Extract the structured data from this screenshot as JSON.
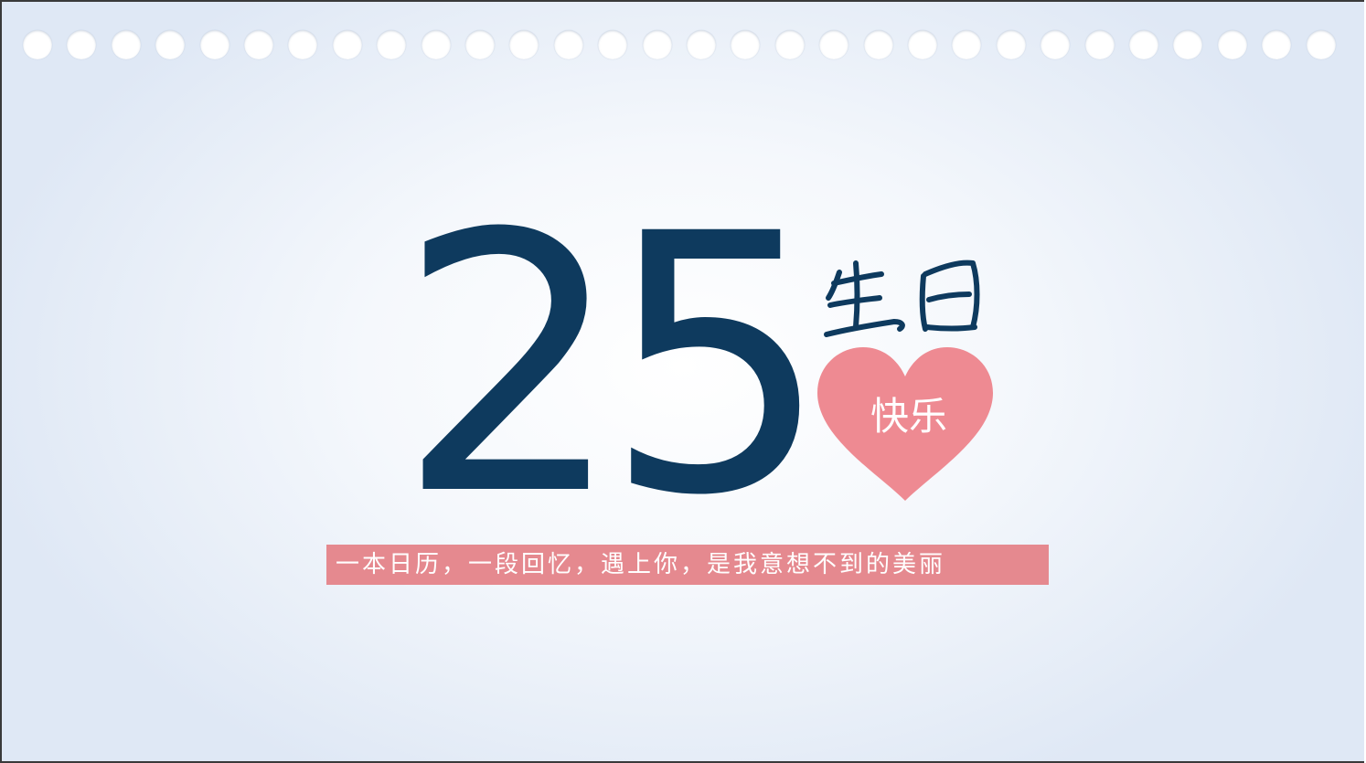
{
  "slide": {
    "age_number": "25",
    "script_title": "生日",
    "heart_label": "快乐",
    "slogan": "一本日历，一段回忆，遇上你，是我意想不到的美丽"
  },
  "decoration": {
    "binding_holes": 30,
    "heart_color": "#ee8a92",
    "number_color": "#0e3a5e",
    "slogan_bar_color": "#e5898f"
  }
}
